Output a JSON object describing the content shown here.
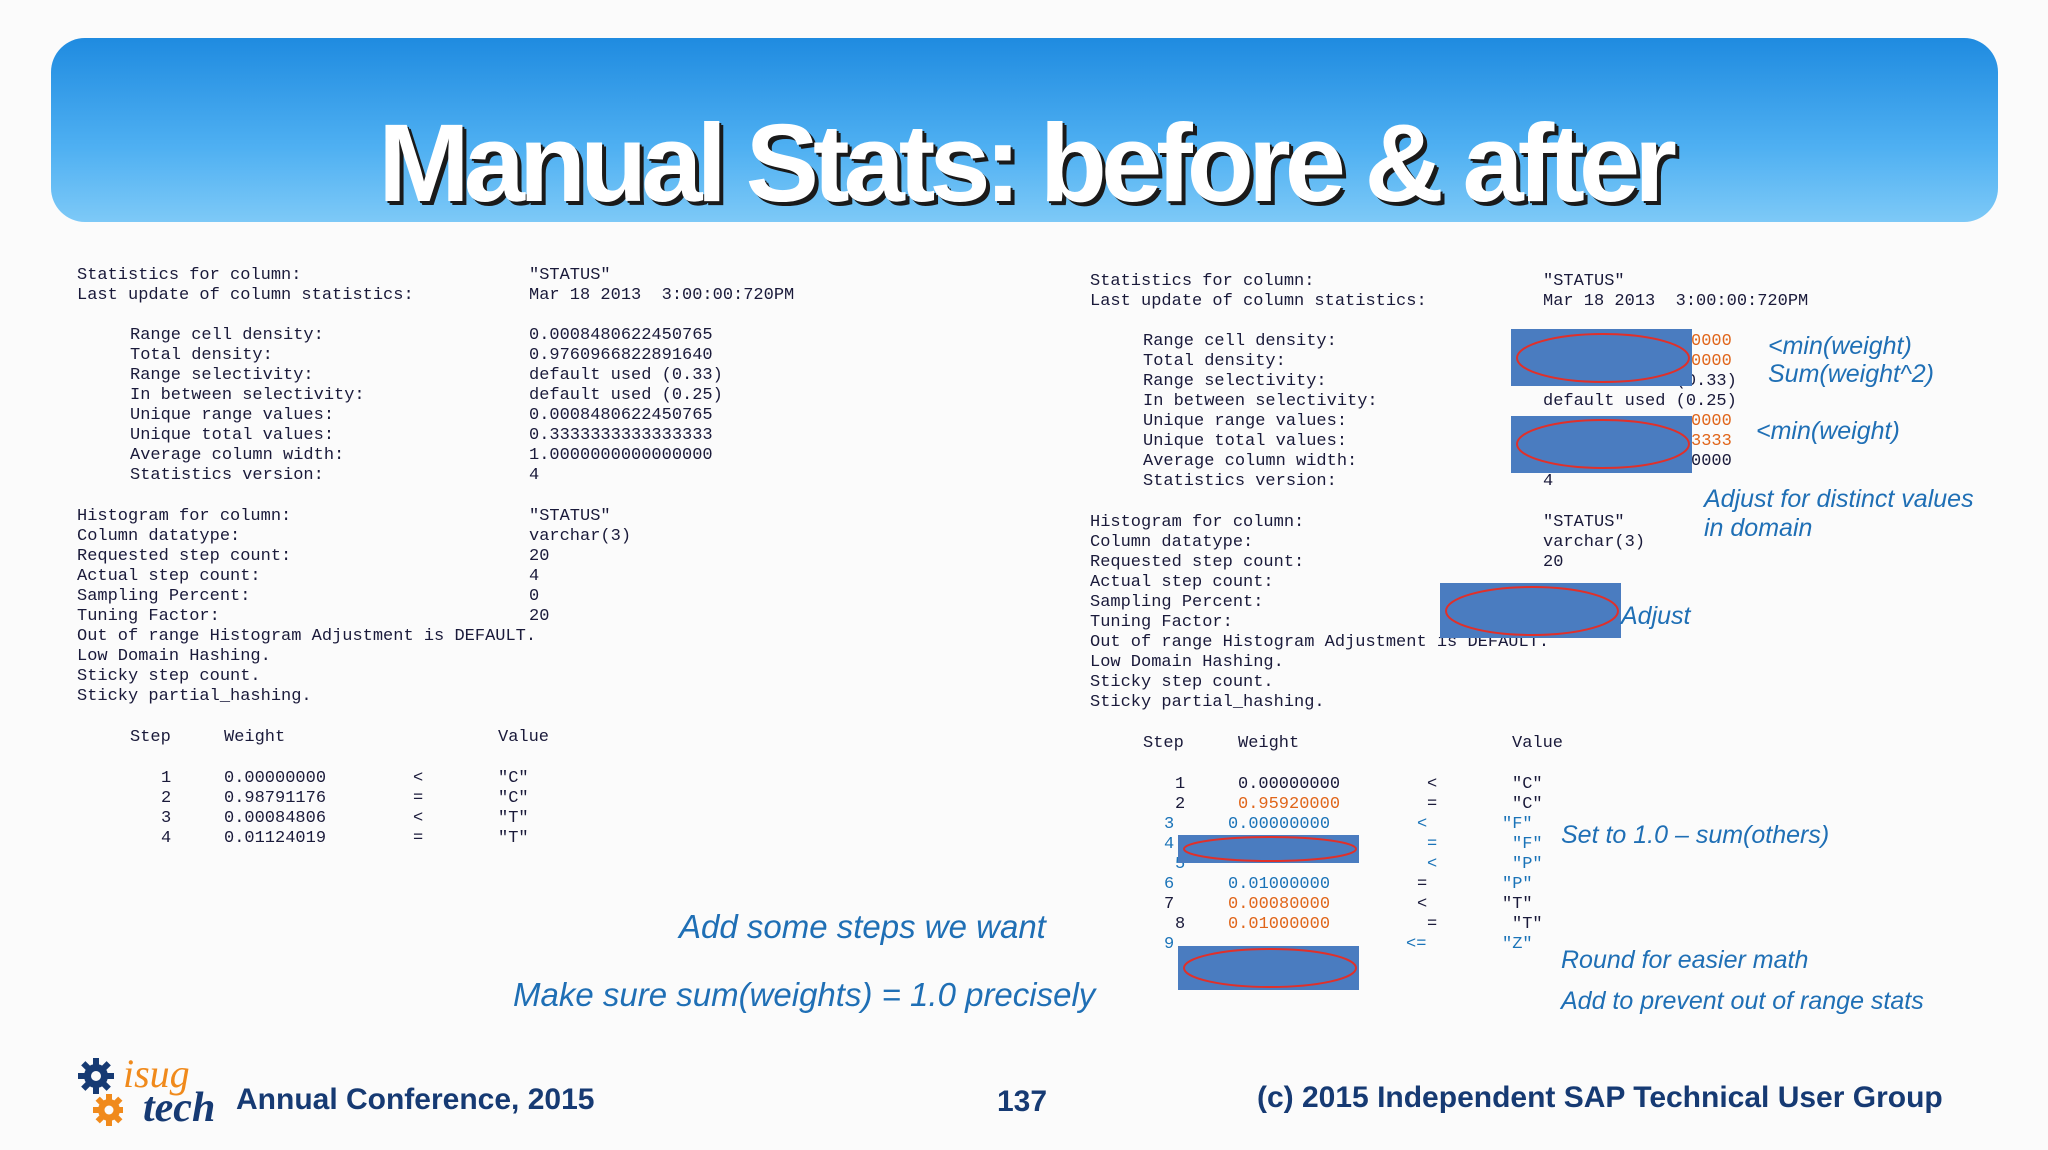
{
  "slide": {
    "title": "Manual Stats: before & after",
    "page_number": "137"
  },
  "left": {
    "header": [
      {
        "k": "Statistics for column:",
        "v": "\"STATUS\""
      },
      {
        "k": "Last update of column statistics:",
        "v": "Mar 18 2013  3:00:00:720PM"
      }
    ],
    "stats": [
      {
        "k": "Range cell density:",
        "v": "0.0008480622450765"
      },
      {
        "k": "Total density:",
        "v": "0.9760966822891640"
      },
      {
        "k": "Range selectivity:",
        "v": "default used (0.33)"
      },
      {
        "k": "In between selectivity:",
        "v": "default used (0.25)"
      },
      {
        "k": "Unique range values:",
        "v": "0.0008480622450765"
      },
      {
        "k": "Unique total values:",
        "v": "0.3333333333333333"
      },
      {
        "k": "Average column width:",
        "v": "1.0000000000000000"
      },
      {
        "k": "Statistics version:",
        "v": "4"
      }
    ],
    "histogram": [
      {
        "k": "Histogram for column:",
        "v": "\"STATUS\""
      },
      {
        "k": "Column datatype:",
        "v": "varchar(3)"
      },
      {
        "k": "Requested step count:",
        "v": "20"
      },
      {
        "k": "Actual step count:",
        "v": "4"
      },
      {
        "k": "Sampling Percent:",
        "v": "0"
      },
      {
        "k": "Tuning Factor:",
        "v": "20"
      }
    ],
    "extra_lines": [
      "Out of range Histogram Adjustment is DEFAULT.",
      "Low Domain Hashing.",
      "Sticky step count.",
      "Sticky partial_hashing."
    ],
    "table_headers": {
      "step": "Step",
      "weight": "Weight",
      "value": "Value"
    },
    "rows": [
      {
        "step": "1",
        "weight": "0.00000000",
        "op": "<",
        "value": "\"C\""
      },
      {
        "step": "2",
        "weight": "0.98791176",
        "op": "=",
        "value": "\"C\""
      },
      {
        "step": "3",
        "weight": "0.00084806",
        "op": "<",
        "value": "\"T\""
      },
      {
        "step": "4",
        "weight": "0.01124019",
        "op": "=",
        "value": "\"T\""
      }
    ]
  },
  "right": {
    "header": [
      {
        "k": "Statistics for column:",
        "v": "\"STATUS\""
      },
      {
        "k": "Last update of column statistics:",
        "v": "Mar 18 2013  3:00:00:720PM"
      }
    ],
    "stats": [
      {
        "k": "Range cell density:",
        "v": "0000"
      },
      {
        "k": "Total density:",
        "v": "0000"
      },
      {
        "k": "Range selectivity:",
        "v": "default used (0.33)"
      },
      {
        "k": "In between selectivity:",
        "v": "default used (0.25)"
      },
      {
        "k": "Unique range values:",
        "v": "0000"
      },
      {
        "k": "Unique total values:",
        "v": "3333"
      },
      {
        "k": "Average column width:",
        "v": "0000"
      },
      {
        "k": "Statistics version:",
        "v": "4"
      }
    ],
    "histogram": [
      {
        "k": "Histogram for column:",
        "v": "\"STATUS\""
      },
      {
        "k": "Column datatype:",
        "v": "varchar(3)"
      },
      {
        "k": "Requested step count:",
        "v": "20"
      },
      {
        "k": "Actual step count:",
        "v": ""
      },
      {
        "k": "Sampling Percent:",
        "v": ""
      },
      {
        "k": "Tuning Factor:",
        "v": ""
      }
    ],
    "extra_lines": [
      "Out of range Histogram Adjustment is DEFAULT.",
      "Low Domain Hashing.",
      "Sticky step count.",
      "Sticky partial_hashing."
    ],
    "table_headers": {
      "step": "Step",
      "weight": "Weight",
      "value": "Value"
    },
    "rows": [
      {
        "step": "1",
        "weight": "0.00000000",
        "op": "<",
        "value": "\"C\""
      },
      {
        "step": "2",
        "weight": "0.95920000",
        "op": "=",
        "value": "\"C\""
      },
      {
        "step": "3",
        "weight": "0.00000000",
        "op": "<",
        "value": "\"F\""
      },
      {
        "step": "4",
        "weight": "",
        "op": "=",
        "value": "\"F\""
      },
      {
        "step": "5",
        "weight": "",
        "op": "<",
        "value": "\"P\""
      },
      {
        "step": "6",
        "weight": "0.01000000",
        "op": "=",
        "value": "\"P\""
      },
      {
        "step": "7",
        "weight": "0.00080000",
        "op": "<",
        "value": "\"T\""
      },
      {
        "step": "8",
        "weight": "0.01000000",
        "op": "=",
        "value": "\"T\""
      },
      {
        "step": "9",
        "weight": "",
        "op": "<=",
        "value": "\"Z\""
      }
    ]
  },
  "annotations": {
    "min_weight_1": "<min(weight)",
    "sum_weight_sq": "Sum(weight^2)",
    "min_weight_2": "<min(weight)",
    "adjust_distinct_1": "Adjust for distinct values",
    "adjust_distinct_2": "in domain",
    "adjust": "Adjust",
    "set_to_one": "Set to 1.0 – sum(others)",
    "round": "Round for easier math",
    "add_prevent": "Add to prevent out of range stats",
    "add_steps": "Add some steps we want",
    "make_sure": "Make sure sum(weights) = 1.0 precisely"
  },
  "footer": {
    "logo_top": "isug",
    "logo_bottom": "tech",
    "conference": "Annual Conference, 2015",
    "copyright": "(c) 2015 Independent SAP Technical User Group"
  },
  "colors": {
    "banner": "#3aa0ec",
    "annotation": "#1f6fb5",
    "highlight": "#e0651a",
    "redaction": "#4a7cc0"
  }
}
